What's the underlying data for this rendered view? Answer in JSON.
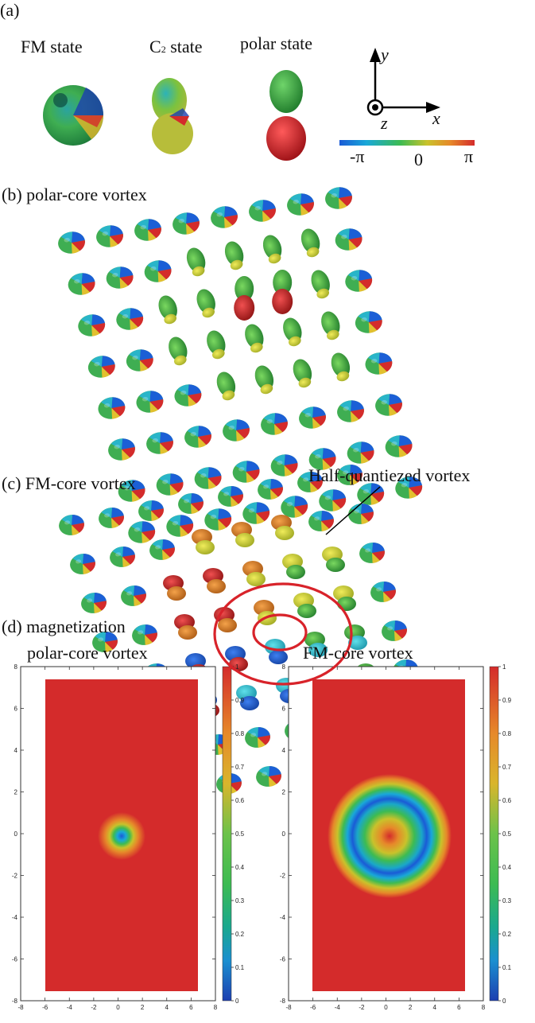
{
  "panel_a": {
    "label": "(a)",
    "states": [
      {
        "label": "FM state"
      },
      {
        "label_main": "C",
        "label_sub": "2",
        "label_rest": " state"
      },
      {
        "label": "polar state"
      }
    ],
    "axes": {
      "y": "y",
      "x": "x",
      "z": "z"
    },
    "phase_colorbar": {
      "min_label": "-π",
      "mid_label": "0",
      "max_label": "π",
      "colors": [
        "#1a5bd6",
        "#19a8d8",
        "#3dbb52",
        "#c9c22b",
        "#e6892a",
        "#d42b2b"
      ]
    }
  },
  "panel_b": {
    "label": "(b) polar-core vortex"
  },
  "panel_c": {
    "label": "(c) FM-core vortex",
    "annotation": "Half-quantiezed vortex"
  },
  "panel_d": {
    "label": "(d) magnetization",
    "left_title": "polar-core vortex",
    "right_title": "FM-core vortex",
    "axis_ticks": [
      "-8",
      "-6",
      "-4",
      "-2",
      "0",
      "2",
      "4",
      "6",
      "8"
    ],
    "colorbar_ticks": [
      "1",
      "0.9",
      "0.8",
      "0.7",
      "0.6",
      "0.5",
      "0.4",
      "0.3",
      "0.2",
      "0.1",
      "0"
    ],
    "colorbar_colors": [
      "#d42b2b",
      "#e05a2a",
      "#e6892a",
      "#d9b52c",
      "#b8c63a",
      "#6cc24a",
      "#3dbb52",
      "#1aa88f",
      "#1b8fd0",
      "#1a5bd6",
      "#1c3fb0"
    ]
  }
}
